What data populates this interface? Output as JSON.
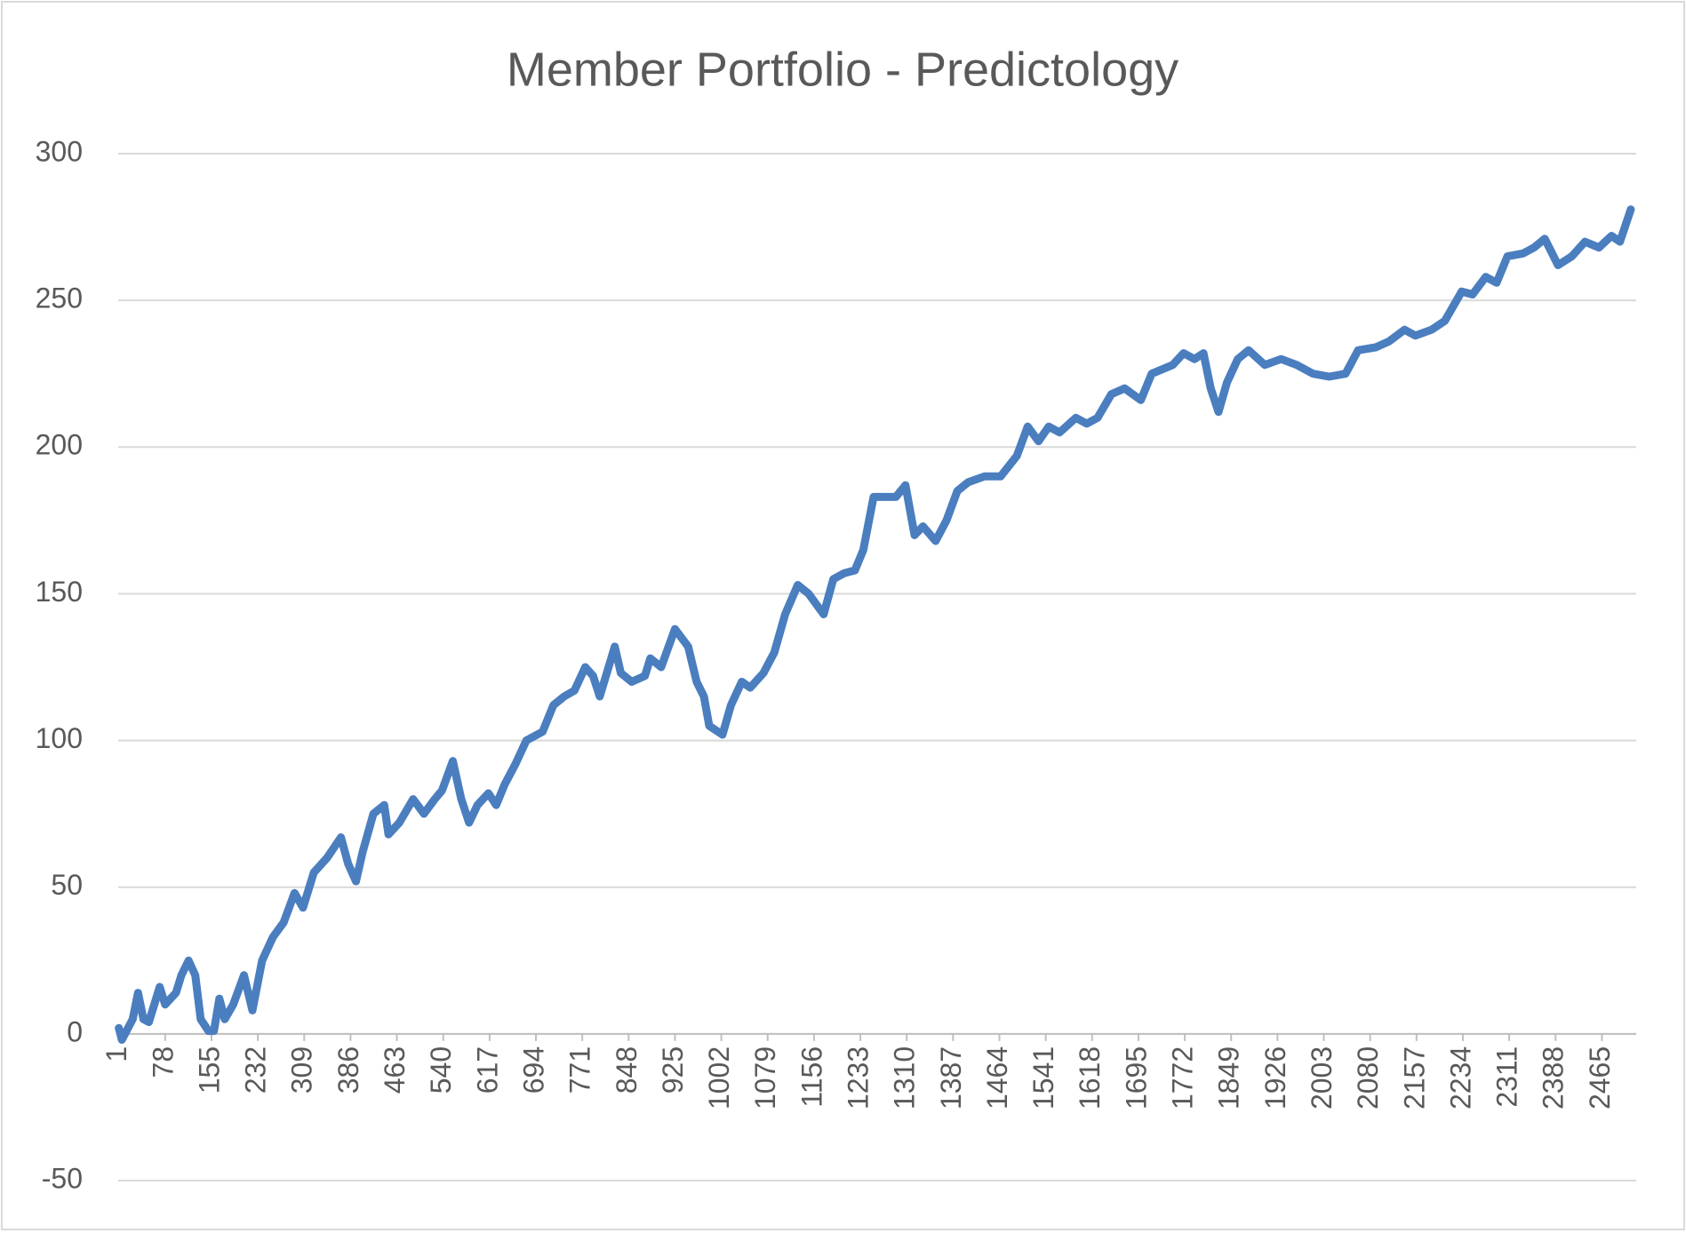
{
  "chart_data": {
    "type": "line",
    "title": "Member Portfolio - Predictology",
    "x": [
      1,
      6,
      24,
      33,
      42,
      51,
      69,
      78,
      96,
      105,
      117,
      128,
      137,
      150,
      159,
      168,
      177,
      191,
      209,
      223,
      239,
      257,
      275,
      293,
      307,
      325,
      347,
      370,
      382,
      395,
      406,
      424,
      442,
      449,
      467,
      490,
      508,
      526,
      538,
      556,
      570,
      583,
      597,
      615,
      628,
      642,
      660,
      678,
      705,
      723,
      741,
      758,
      776,
      789,
      800,
      825,
      835,
      853,
      875,
      884,
      902,
      925,
      947,
      961,
      973,
      982,
      1004,
      1018,
      1036,
      1050,
      1072,
      1090,
      1108,
      1129,
      1147,
      1172,
      1188,
      1206,
      1224,
      1238,
      1255,
      1269,
      1292,
      1308,
      1323,
      1337,
      1358,
      1376,
      1394,
      1412,
      1439,
      1466,
      1493,
      1511,
      1529,
      1546,
      1564,
      1591,
      1609,
      1627,
      1650,
      1672,
      1699,
      1717,
      1752,
      1770,
      1788,
      1803,
      1815,
      1828,
      1842,
      1860,
      1878,
      1905,
      1932,
      1958,
      1985,
      2012,
      2039,
      2060,
      2089,
      2111,
      2137,
      2155,
      2182,
      2204,
      2232,
      2250,
      2272,
      2290,
      2308,
      2334,
      2352,
      2370,
      2392,
      2415,
      2437,
      2460,
      2481,
      2495,
      2513
    ],
    "values": [
      2,
      -2,
      5,
      14,
      5,
      4,
      16,
      10,
      14,
      20,
      25,
      20,
      5,
      1,
      1,
      12,
      5,
      10,
      20,
      8,
      25,
      33,
      38,
      48,
      43,
      55,
      60,
      67,
      58,
      52,
      62,
      75,
      78,
      68,
      72,
      80,
      75,
      80,
      83,
      93,
      80,
      72,
      78,
      82,
      78,
      85,
      92,
      100,
      103,
      112,
      115,
      117,
      125,
      122,
      115,
      132,
      123,
      120,
      122,
      128,
      125,
      138,
      132,
      120,
      115,
      105,
      102,
      112,
      120,
      118,
      123,
      130,
      143,
      153,
      150,
      143,
      155,
      157,
      158,
      165,
      183,
      183,
      183,
      187,
      170,
      173,
      168,
      175,
      185,
      188,
      190,
      190,
      197,
      207,
      202,
      207,
      205,
      210,
      208,
      210,
      218,
      220,
      216,
      225,
      228,
      232,
      230,
      232,
      220,
      212,
      222,
      230,
      233,
      228,
      230,
      228,
      225,
      224,
      225,
      233,
      234,
      236,
      240,
      238,
      240,
      243,
      253,
      252,
      258,
      256,
      265,
      266,
      268,
      271,
      262,
      265,
      270,
      268,
      272,
      270,
      281
    ],
    "color": "#4a7ebf",
    "xlim": [
      0,
      2522
    ],
    "xticks": [
      1,
      78,
      155,
      232,
      309,
      386,
      463,
      540,
      617,
      694,
      771,
      848,
      925,
      1002,
      1079,
      1156,
      1233,
      1310,
      1387,
      1464,
      1541,
      1618,
      1695,
      1772,
      1849,
      1926,
      2003,
      2080,
      2157,
      2234,
      2311,
      2388,
      2465
    ],
    "ylim": [
      -50,
      300
    ],
    "yticks": [
      -50,
      0,
      50,
      100,
      150,
      200,
      250,
      300
    ],
    "grid": true
  }
}
